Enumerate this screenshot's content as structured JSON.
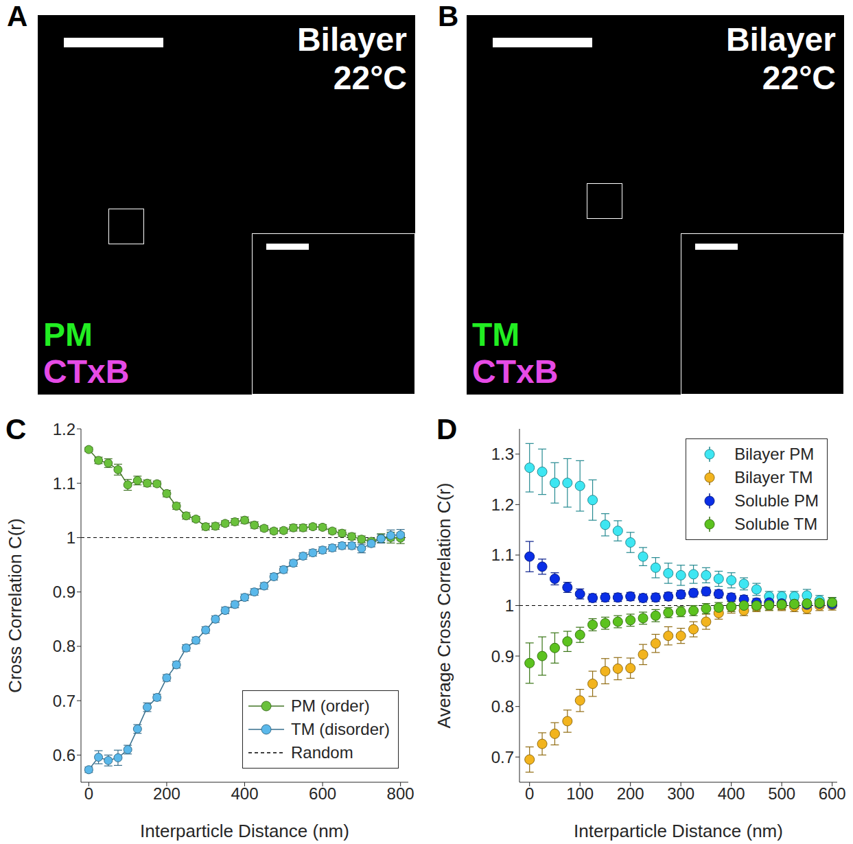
{
  "images": [
    {
      "panel": "A",
      "title": [
        "Bilayer",
        "22°C"
      ],
      "labels": [
        {
          "text": "PM",
          "color": "#22ee22"
        },
        {
          "text": "CTxB",
          "color": "#e64be6"
        }
      ]
    },
    {
      "panel": "B",
      "title": [
        "Bilayer",
        "22°C"
      ],
      "labels": [
        {
          "text": "TM",
          "color": "#22ee22"
        },
        {
          "text": "CTxB",
          "color": "#e64be6"
        }
      ]
    }
  ],
  "chart_data": [
    {
      "panel": "C",
      "type": "line",
      "xlabel": "Interparticle Distance (nm)",
      "ylabel": "Cross Correlation C(r)",
      "x": [
        0,
        25,
        50,
        75,
        100,
        125,
        150,
        175,
        200,
        225,
        250,
        275,
        300,
        325,
        350,
        375,
        400,
        425,
        450,
        475,
        500,
        525,
        550,
        575,
        600,
        625,
        650,
        675,
        700,
        725,
        750,
        775,
        800
      ],
      "xlim": [
        -20,
        820
      ],
      "xticks": [
        0,
        200,
        400,
        600,
        800
      ],
      "ylim": [
        0.55,
        1.2
      ],
      "yticks": [
        0.6,
        0.7,
        0.8,
        0.9,
        1,
        1.1,
        1.2
      ],
      "legend": "lower right",
      "series": [
        {
          "name": "PM (order)",
          "color": "#6ac13c",
          "marker": "circle",
          "values": [
            1.162,
            1.142,
            1.137,
            1.125,
            1.097,
            1.105,
            1.1,
            1.099,
            1.081,
            1.058,
            1.04,
            1.034,
            1.02,
            1.021,
            1.026,
            1.029,
            1.032,
            1.023,
            1.017,
            1.012,
            1.013,
            1.018,
            1.018,
            1.02,
            1.019,
            1.012,
            1.008,
            1.002,
            0.997,
            0.993,
            0.999,
            1,
            0.999
          ],
          "errors": [
            0.004,
            0.006,
            0.008,
            0.01,
            0.01,
            0.008,
            0.006,
            0.005,
            0.006,
            0.006,
            0.006,
            0.005,
            0.006,
            0.006,
            0.005,
            0.006,
            0.006,
            0.006,
            0.005,
            0.005,
            0.005,
            0.006,
            0.006,
            0.005,
            0.005,
            0.005,
            0.006,
            0.006,
            0.006,
            0.005,
            0.008,
            0.01,
            0.01
          ]
        },
        {
          "name": "TM (disorder)",
          "color": "#5ab8ea",
          "marker": "circle",
          "values": [
            0.573,
            0.596,
            0.59,
            0.595,
            0.61,
            0.648,
            0.688,
            0.706,
            0.742,
            0.766,
            0.797,
            0.811,
            0.83,
            0.85,
            0.866,
            0.877,
            0.89,
            0.9,
            0.911,
            0.928,
            0.941,
            0.953,
            0.966,
            0.972,
            0.977,
            0.981,
            0.985,
            0.985,
            0.98,
            0.989,
            0.998,
            1.004,
            1.005
          ],
          "errors": [
            0.005,
            0.012,
            0.01,
            0.014,
            0.008,
            0.008,
            0.008,
            0.006,
            0.006,
            0.006,
            0.006,
            0.006,
            0.006,
            0.006,
            0.006,
            0.006,
            0.006,
            0.006,
            0.006,
            0.006,
            0.006,
            0.006,
            0.006,
            0.006,
            0.006,
            0.006,
            0.006,
            0.006,
            0.008,
            0.006,
            0.008,
            0.01,
            0.01
          ]
        }
      ],
      "reference_line": {
        "name": "Random",
        "y": 1,
        "color": "#000000",
        "line_style": "dashed"
      }
    },
    {
      "panel": "D",
      "type": "scatter",
      "xlabel": "Interparticle Distance (nm)",
      "ylabel": "Average Cross Correlation C(r)",
      "x": [
        0,
        25,
        50,
        75,
        100,
        125,
        150,
        175,
        200,
        225,
        250,
        275,
        300,
        325,
        350,
        375,
        400,
        425,
        450,
        475,
        500,
        525,
        550,
        575,
        600
      ],
      "xlim": [
        -20,
        610
      ],
      "xticks": [
        0,
        100,
        200,
        300,
        400,
        500,
        600
      ],
      "ylim": [
        0.65,
        1.35
      ],
      "yticks": [
        0.7,
        0.8,
        0.9,
        1,
        1.1,
        1.2,
        1.3
      ],
      "legend": "upper right",
      "series": [
        {
          "name": "Bilayer PM",
          "color": "#3ee6f2",
          "marker": "circle",
          "values": [
            1.273,
            1.265,
            1.243,
            1.243,
            1.237,
            1.209,
            1.16,
            1.148,
            1.125,
            1.097,
            1.075,
            1.064,
            1.06,
            1.062,
            1.06,
            1.053,
            1.05,
            1.043,
            1.032,
            1.018,
            1.018,
            1.018,
            1.02,
            1.01,
            1.005
          ],
          "errors": [
            0.048,
            0.045,
            0.04,
            0.048,
            0.05,
            0.04,
            0.022,
            0.02,
            0.02,
            0.018,
            0.02,
            0.02,
            0.02,
            0.018,
            0.015,
            0.015,
            0.015,
            0.012,
            0.012,
            0.01,
            0.01,
            0.01,
            0.012,
            0.01,
            0.01
          ]
        },
        {
          "name": "Bilayer TM",
          "color": "#f2b41e",
          "marker": "circle",
          "values": [
            0.695,
            0.726,
            0.746,
            0.771,
            0.812,
            0.845,
            0.87,
            0.875,
            0.876,
            0.903,
            0.925,
            0.94,
            0.94,
            0.953,
            0.968,
            0.985,
            0.997,
            0.99,
            0.998,
            1,
            1,
            0.998,
            0.994,
            1,
            1.001
          ],
          "errors": [
            0.025,
            0.022,
            0.022,
            0.022,
            0.022,
            0.025,
            0.025,
            0.022,
            0.02,
            0.02,
            0.018,
            0.018,
            0.015,
            0.015,
            0.015,
            0.012,
            0.012,
            0.01,
            0.01,
            0.01,
            0.01,
            0.01,
            0.01,
            0.01,
            0.01
          ]
        },
        {
          "name": "Soluble PM",
          "color": "#0a2ee6",
          "marker": "circle",
          "values": [
            1.097,
            1.077,
            1.053,
            1.036,
            1.023,
            1.015,
            1.016,
            1.016,
            1.018,
            1.015,
            1.016,
            1.018,
            1.022,
            1.025,
            1.028,
            1.023,
            1.016,
            1.012,
            1.006,
            1.006,
            1.004,
            1.003,
            1.002,
            1.004,
            1.003
          ],
          "errors": [
            0.03,
            0.015,
            0.012,
            0.01,
            0.01,
            0.008,
            0.008,
            0.008,
            0.008,
            0.008,
            0.008,
            0.008,
            0.008,
            0.008,
            0.008,
            0.008,
            0.008,
            0.008,
            0.008,
            0.008,
            0.008,
            0.008,
            0.008,
            0.008,
            0.008
          ]
        },
        {
          "name": "Soluble TM",
          "color": "#5cc21f",
          "marker": "circle",
          "values": [
            0.886,
            0.9,
            0.916,
            0.929,
            0.942,
            0.962,
            0.965,
            0.968,
            0.971,
            0.975,
            0.98,
            0.986,
            0.988,
            0.99,
            0.994,
            0.996,
            0.998,
            1,
            1,
            1.001,
            1.002,
            1.003,
            1.004,
            1.005,
            1.006
          ],
          "errors": [
            0.04,
            0.038,
            0.03,
            0.02,
            0.015,
            0.012,
            0.012,
            0.012,
            0.012,
            0.012,
            0.012,
            0.01,
            0.01,
            0.01,
            0.01,
            0.01,
            0.01,
            0.01,
            0.01,
            0.01,
            0.01,
            0.01,
            0.01,
            0.01,
            0.01
          ]
        }
      ],
      "reference_line": {
        "y": 1,
        "color": "#000000",
        "line_style": "dashed"
      }
    }
  ]
}
